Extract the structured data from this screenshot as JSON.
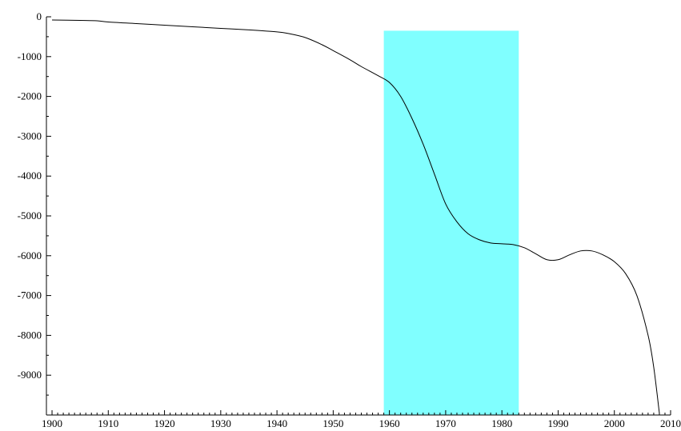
{
  "chart_data": {
    "type": "line",
    "title": "",
    "xlabel": "",
    "ylabel": "",
    "xlim": [
      1899,
      2010
    ],
    "ylim": [
      -10000,
      0
    ],
    "x_ticks": [
      1900,
      1910,
      1920,
      1930,
      1940,
      1950,
      1960,
      1970,
      1980,
      1990,
      2000,
      2010
    ],
    "y_ticks": [
      0,
      -1000,
      -2000,
      -3000,
      -4000,
      -5000,
      -6000,
      -7000,
      -8000,
      -9000
    ],
    "grid": false,
    "legend": "none",
    "highlight_band": {
      "x_start": 1959,
      "x_end": 1983,
      "y_top": -350,
      "color": "#80ffff"
    },
    "series": [
      {
        "color": "#000000",
        "x": [
          1900,
          1905,
          1908,
          1910,
          1915,
          1920,
          1925,
          1930,
          1935,
          1940,
          1942,
          1945,
          1948,
          1950,
          1953,
          1955,
          1958,
          1960,
          1962,
          1964,
          1966,
          1968,
          1970,
          1972,
          1974,
          1976,
          1978,
          1980,
          1982,
          1984,
          1986,
          1988,
          1990,
          1992,
          1994,
          1996,
          1998,
          2000,
          2002,
          2004,
          2006,
          2007,
          2008
        ],
        "y": [
          -80,
          -90,
          -100,
          -130,
          -170,
          -210,
          -250,
          -290,
          -330,
          -380,
          -420,
          -520,
          -700,
          -850,
          -1080,
          -1250,
          -1480,
          -1650,
          -2000,
          -2550,
          -3200,
          -3950,
          -4700,
          -5150,
          -5450,
          -5600,
          -5680,
          -5700,
          -5720,
          -5800,
          -5950,
          -6100,
          -6100,
          -5980,
          -5880,
          -5880,
          -5980,
          -6150,
          -6450,
          -7000,
          -8000,
          -8800,
          -9950
        ]
      }
    ]
  }
}
